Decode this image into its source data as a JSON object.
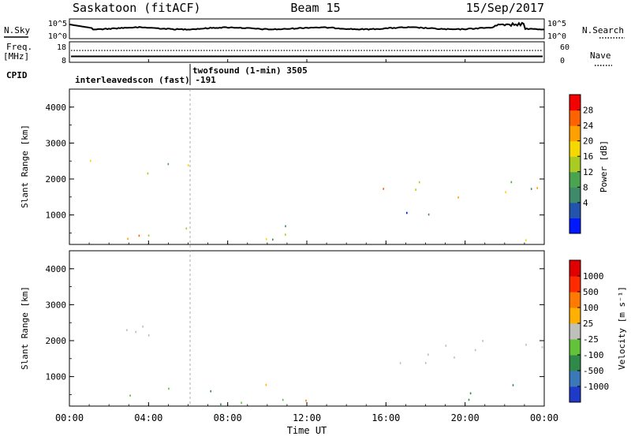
{
  "header": {
    "site": "Saskatoon (fitACF)",
    "beam": "Beam 15",
    "date": "15/Sep/2017"
  },
  "status_panels": {
    "nsky_label": "N.Sky",
    "nsearch_label": "N.Search",
    "freq_label_line1": "Freq.",
    "freq_label_line2": "[MHz]",
    "nave_label": "Nave",
    "cpid_label": "CPID",
    "noise_ticks_left": [
      "10^5",
      "10^0"
    ],
    "noise_ticks_right": [
      "10^5",
      "10^0"
    ],
    "freq_ticks": [
      "18",
      "8"
    ],
    "nave_ticks": [
      "60",
      "0"
    ],
    "cpid_entries": [
      {
        "text": "interleavedscon (fast)  -191",
        "start_hour": 6.0
      },
      {
        "text": "twofsound (1-min) 3505",
        "start_hour": 6.0
      }
    ]
  },
  "time_axis": {
    "label": "Time UT",
    "ticks": [
      "00:00",
      "04:00",
      "08:00",
      "12:00",
      "16:00",
      "20:00",
      "00:00"
    ]
  },
  "power_colorbar": {
    "label": "Power [dB]",
    "ticks": [
      "28",
      "24",
      "20",
      "16",
      "12",
      "8",
      "4"
    ],
    "colors": [
      "#0018ff",
      "#2254ad",
      "#3f8a6a",
      "#4aa34e",
      "#a8cc22",
      "#f5d800",
      "#ffa000",
      "#ff6200",
      "#f40000"
    ]
  },
  "velocity_colorbar": {
    "label": "Velocity [m s⁻¹]",
    "ticks": [
      "1000",
      "500",
      "100",
      "25",
      "-25",
      "-100",
      "-500",
      "-1000"
    ],
    "colors": [
      "#1f39c8",
      "#3a78b8",
      "#2f8a4a",
      "#62c23a",
      "#c0c0ba",
      "#ffb000",
      "#ff7a00",
      "#ff2a00",
      "#e00000"
    ],
    "ground_scatter_color": "#bdbdb4"
  },
  "chart_data": [
    {
      "type": "heatmap",
      "quantity": "Power",
      "ylabel": "Slant Range [km]",
      "xlabel": "",
      "ylim": [
        180,
        4500
      ],
      "xlim_hours": [
        0,
        24
      ],
      "yticks": [
        1000,
        2000,
        3000,
        4000
      ],
      "units": "dB",
      "clim": [
        0,
        30
      ],
      "regions": [
        {
          "hours": [
            0.0,
            6.0
          ],
          "range_km": [
            2000,
            2600
          ],
          "level": 14
        },
        {
          "hours": [
            0.0,
            12.5
          ],
          "range_km": [
            250,
            800
          ],
          "level": 16
        },
        {
          "hours": [
            13.5,
            23.9
          ],
          "range_km": [
            1450,
            2150
          ],
          "level": 18
        },
        {
          "hours": [
            17.0,
            21.5
          ],
          "range_km": [
            1000,
            1300
          ],
          "level": 6
        },
        {
          "hours": [
            22.5,
            23.8
          ],
          "range_km": [
            250,
            600
          ],
          "level": 12
        }
      ]
    },
    {
      "type": "heatmap",
      "quantity": "Velocity",
      "ylabel": "Slant Range [km]",
      "xlabel": "Time UT",
      "ylim": [
        180,
        4500
      ],
      "xlim_hours": [
        0,
        24
      ],
      "yticks": [
        1000,
        2000,
        3000,
        4000
      ],
      "units": "m/s",
      "regions": [
        {
          "hours": [
            0.0,
            6.0
          ],
          "range_km": [
            2000,
            2600
          ],
          "velocity": 0
        },
        {
          "hours": [
            0.0,
            12.5
          ],
          "range_km": [
            250,
            800
          ],
          "velocity": -150
        },
        {
          "hours": [
            13.5,
            23.9
          ],
          "range_km": [
            1400,
            2150
          ],
          "velocity": 0
        },
        {
          "hours": [
            19.0,
            22.5
          ],
          "range_km": [
            300,
            1000
          ],
          "velocity": 200
        }
      ]
    }
  ]
}
